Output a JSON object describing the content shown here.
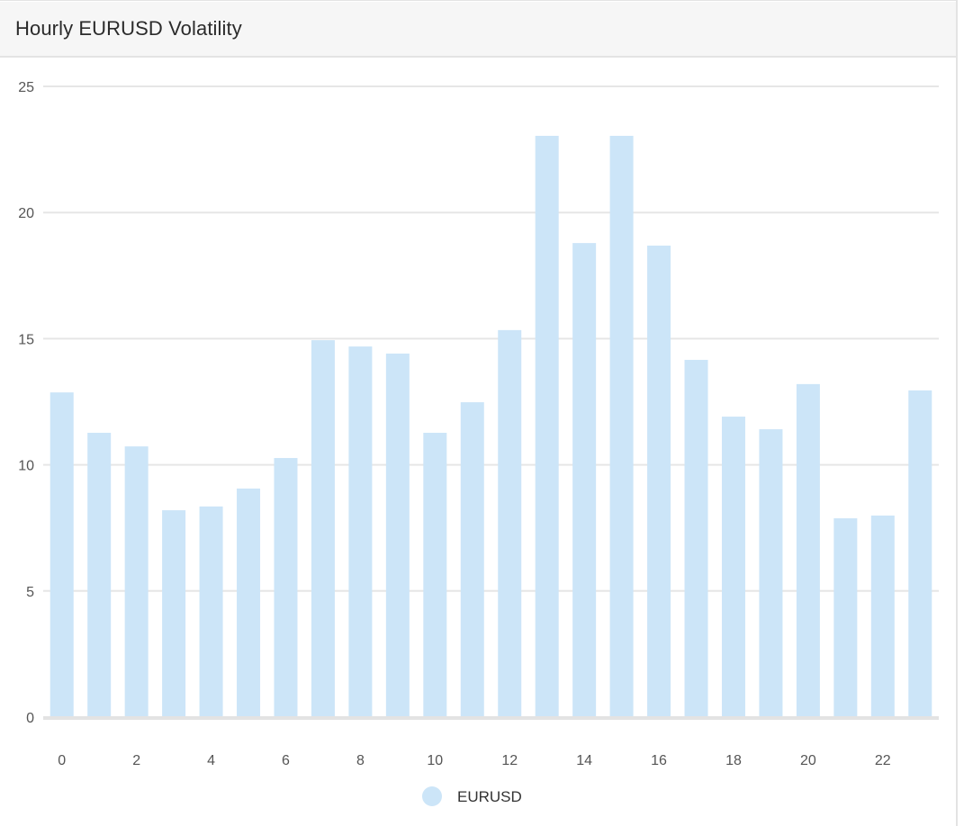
{
  "panel": {
    "title": "Hourly EURUSD Volatility"
  },
  "chart_data": {
    "type": "bar",
    "title": "Hourly EURUSD Volatility",
    "xlabel": "",
    "ylabel": "",
    "ylim": [
      0,
      25
    ],
    "yticks": [
      "0",
      "5",
      "10",
      "15",
      "20",
      "25"
    ],
    "xticks": [
      "0",
      "2",
      "4",
      "6",
      "8",
      "10",
      "12",
      "14",
      "16",
      "18",
      "20",
      "22"
    ],
    "categories": [
      0,
      1,
      2,
      3,
      4,
      5,
      6,
      7,
      8,
      9,
      10,
      11,
      12,
      13,
      14,
      15,
      16,
      17,
      18,
      19,
      20,
      21,
      22,
      23
    ],
    "series": [
      {
        "name": "EURUSD",
        "color": "#cce5f8",
        "values": [
          12.87,
          11.27,
          10.73,
          8.2,
          8.35,
          9.06,
          10.27,
          14.94,
          14.69,
          14.41,
          11.27,
          12.48,
          15.34,
          23.04,
          18.79,
          23.04,
          18.69,
          14.16,
          11.91,
          11.41,
          13.2,
          7.88,
          7.99,
          12.95
        ]
      }
    ],
    "grid": true,
    "legend": "bottom-center"
  }
}
